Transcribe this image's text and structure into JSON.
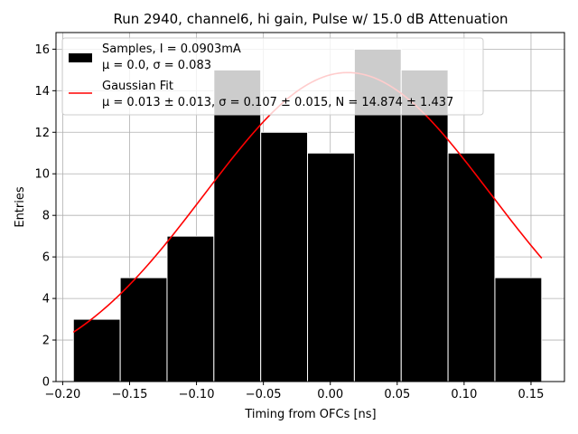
{
  "chart_data": {
    "type": "bar",
    "title": "Run 2940, channel6, hi gain, Pulse w/ 15.0 dB Attenuation",
    "xlabel": "Timing from OFCs [ns]",
    "ylabel": "Entries",
    "xlim": [
      -0.205,
      0.175
    ],
    "ylim": [
      0,
      16.8
    ],
    "xticks": [
      -0.2,
      -0.15,
      -0.1,
      -0.05,
      0.0,
      0.05,
      0.1,
      0.15
    ],
    "xtick_labels": [
      "−0.20",
      "−0.15",
      "−0.10",
      "−0.05",
      "0.00",
      "0.05",
      "0.10",
      "0.15"
    ],
    "yticks": [
      0,
      2,
      4,
      6,
      8,
      10,
      12,
      14,
      16
    ],
    "ytick_labels": [
      "0",
      "2",
      "4",
      "6",
      "8",
      "10",
      "12",
      "14",
      "16"
    ],
    "grid": true,
    "legend_position": "top-left",
    "bins": [
      {
        "left": -0.192,
        "right": -0.157,
        "count": 3
      },
      {
        "left": -0.157,
        "right": -0.122,
        "count": 5
      },
      {
        "left": -0.122,
        "right": -0.087,
        "count": 7
      },
      {
        "left": -0.087,
        "right": -0.052,
        "count": 15
      },
      {
        "left": -0.052,
        "right": -0.017,
        "count": 12
      },
      {
        "left": -0.017,
        "right": 0.018,
        "count": 11
      },
      {
        "left": 0.018,
        "right": 0.053,
        "count": 16
      },
      {
        "left": 0.053,
        "right": 0.088,
        "count": 15
      },
      {
        "left": 0.088,
        "right": 0.123,
        "count": 11
      },
      {
        "left": 0.123,
        "right": 0.158,
        "count": 5
      }
    ],
    "fit": {
      "mu": 0.013,
      "sigma": 0.107,
      "N": 14.874,
      "x_range": [
        -0.192,
        0.158
      ]
    },
    "series": [
      {
        "name": "Samples, I = 0.0903mA",
        "stats": "μ = 0.0, σ = 0.083",
        "color": "#000000",
        "kind": "histogram"
      },
      {
        "name": "Gaussian Fit",
        "stats": "μ = 0.013 ± 0.013, σ = 0.107 ± 0.015, N = 14.874 ± 1.437",
        "color": "#ff0000",
        "kind": "line"
      }
    ]
  }
}
